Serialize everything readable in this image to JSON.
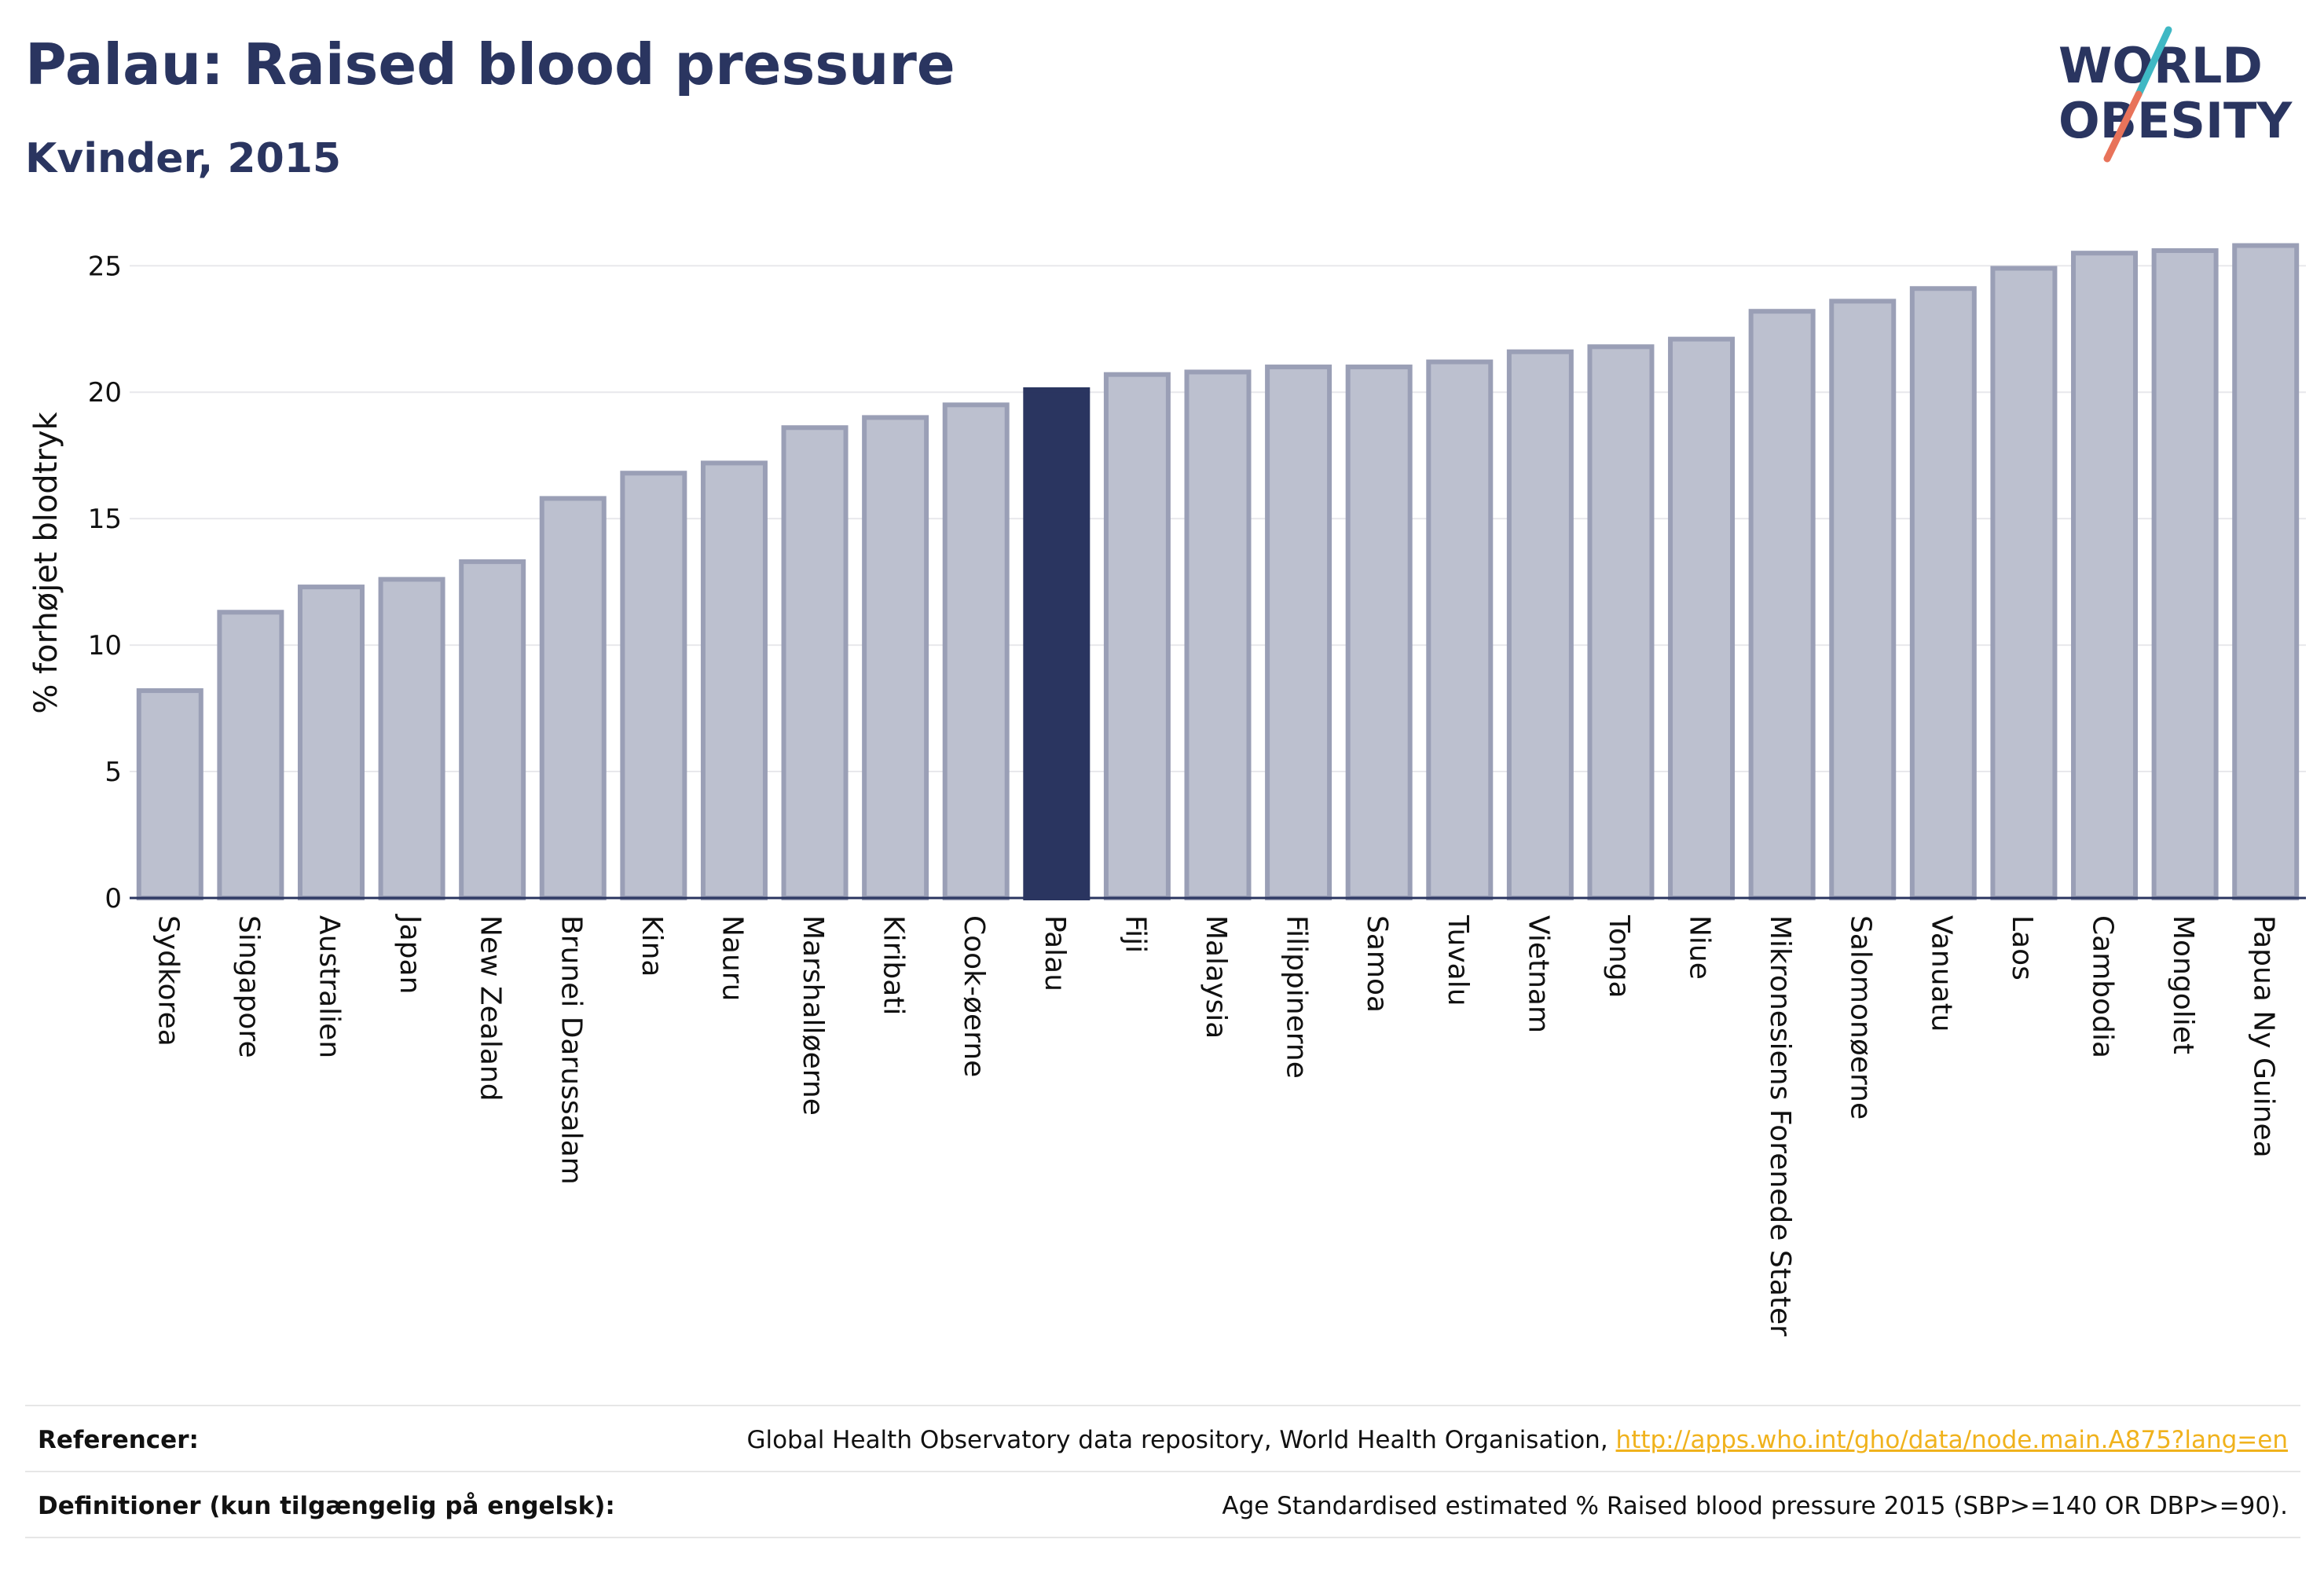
{
  "header": {
    "title": "Palau: Raised blood pressure",
    "subtitle": "Kvinder, 2015"
  },
  "logo": {
    "line1": "WORLD",
    "line2": "OBESITY",
    "accent_colors": [
      "#3fb8c4",
      "#e8735a"
    ]
  },
  "chart_data": {
    "type": "bar",
    "title": "Palau: Raised blood pressure",
    "subtitle": "Kvinder, 2015",
    "xlabel": "",
    "ylabel": "% forhøjet blodtryk",
    "ylim": [
      0,
      26.5
    ],
    "yticks": [
      0,
      5,
      10,
      15,
      20,
      25
    ],
    "grid": true,
    "highlight": "Palau",
    "colors": {
      "bar": "#bcc0cf",
      "bar_stroke": "#9a9fb6",
      "highlight": "#2a3560"
    },
    "categories": [
      "Sydkorea",
      "Singapore",
      "Australien",
      "Japan",
      "New Zealand",
      "Brunei Darussalam",
      "Kina",
      "Nauru",
      "Marshalløerne",
      "Kiribati",
      "Cook-øerne",
      "Palau",
      "Fiji",
      "Malaysia",
      "Filippinerne",
      "Samoa",
      "Tuvalu",
      "Vietnam",
      "Tonga",
      "Niue",
      "Mikronesiens Forenede Stater",
      "Salomonøerne",
      "Vanuatu",
      "Laos",
      "Cambodia",
      "Mongoliet",
      "Papua Ny Guinea"
    ],
    "values": [
      8.2,
      11.3,
      12.3,
      12.6,
      13.3,
      15.8,
      16.8,
      17.2,
      18.6,
      19.0,
      19.5,
      20.1,
      20.7,
      20.8,
      21.0,
      21.0,
      21.2,
      21.6,
      21.8,
      22.1,
      23.2,
      23.6,
      24.1,
      24.9,
      25.5,
      25.6,
      25.8
    ]
  },
  "footer": {
    "references_label": "Referencer:",
    "references_text": "Global Health Observatory data repository, World Health Organisation, ",
    "references_link": "http://apps.who.int/gho/data/node.main.A875?lang=en",
    "definitions_label": "Definitioner (kun tilgængelig på engelsk):",
    "definitions_text": "Age Standardised estimated % Raised blood pressure 2015 (SBP>=140 OR DBP>=90)."
  }
}
